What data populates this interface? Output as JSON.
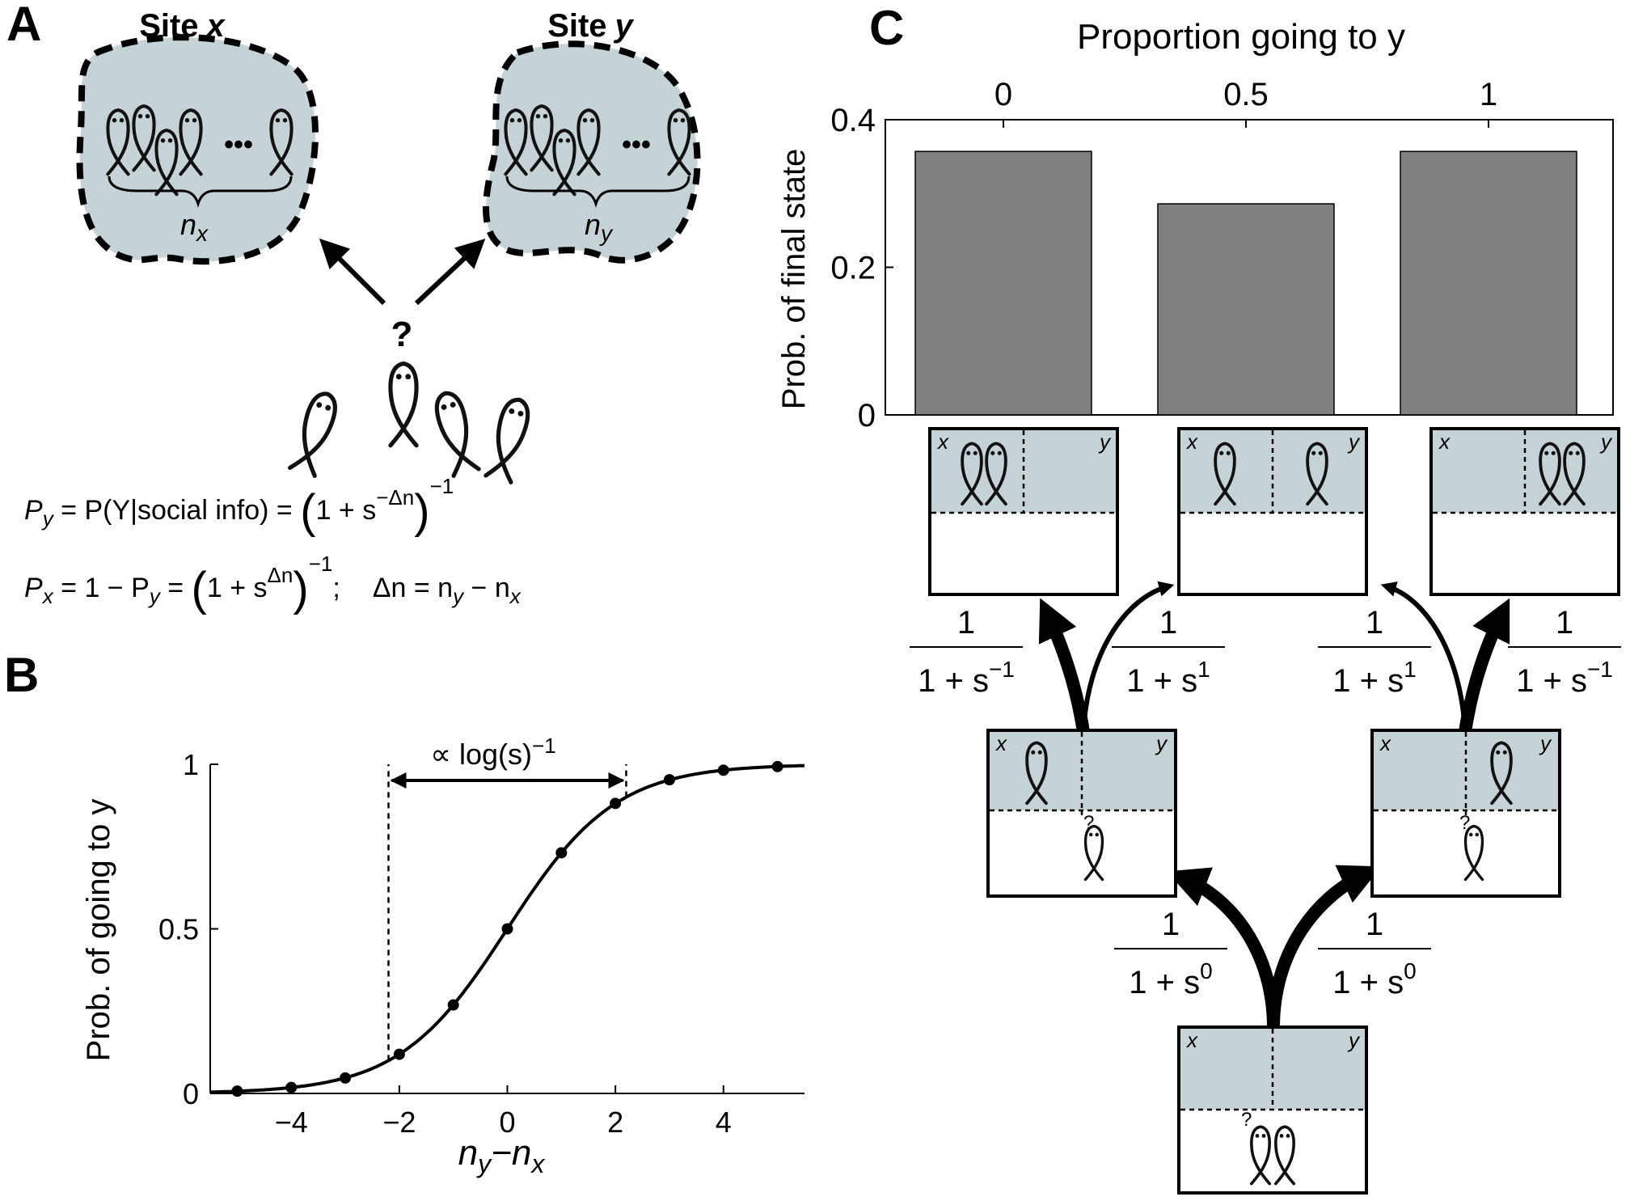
{
  "panels": {
    "a": {
      "letter": "A",
      "site_x": {
        "word": "Site",
        "var": "x",
        "count_label": "n",
        "count_sub": "x"
      },
      "site_y": {
        "word": "Site",
        "var": "y",
        "count_label": "n",
        "count_sub": "y"
      },
      "question_mark": "?",
      "ellipsis": "•••",
      "eq1": {
        "lhs_p": "P",
        "lhs_sub": "y",
        "mid": "= P(Y|social info) =",
        "paren_open": "(",
        "one_plus_s": "1 + s",
        "exp": "−Δn",
        "paren_close": ")",
        "outer_exp": "−1"
      },
      "eq2": {
        "lhs_p": "P",
        "lhs_sub": "x",
        "mid1": "= 1 − P",
        "mid1_sub": "y",
        "mid2": "=",
        "paren_open": "(",
        "one_plus_s": "1 + s",
        "exp": "Δn",
        "paren_close": ")",
        "outer_exp": "−1",
        "semi": ";",
        "delta_lhs": "Δn = n",
        "delta_sub1": "y",
        "delta_minus": "− n",
        "delta_sub2": "x"
      },
      "colors": {
        "site_fill": "#c5d3d6",
        "fish": "#111111"
      }
    },
    "b": {
      "letter": "B",
      "annotation": "∝ log(s)",
      "annotation_exp": "−1",
      "chart_data": {
        "type": "scatter",
        "title": "",
        "xlabel": {
          "n": "n",
          "sub1": "y",
          "dash": "−n",
          "sub2": "x"
        },
        "ylabel": "Prob. of going to y",
        "xlim": [
          -5.5,
          5.5
        ],
        "ylim": [
          0,
          1
        ],
        "xticks": [
          -4,
          -2,
          0,
          2,
          4
        ],
        "xtick_labels": [
          "−4",
          "−2",
          "0",
          "2",
          "4"
        ],
        "yticks": [
          0,
          0.5,
          1
        ],
        "ytick_labels": [
          "0",
          "0.5",
          "1"
        ],
        "points": {
          "x": [
            -5,
            -4,
            -3,
            -2,
            -1,
            0,
            1,
            2,
            3,
            4,
            5
          ],
          "y": [
            0.007,
            0.018,
            0.047,
            0.119,
            0.269,
            0.5,
            0.731,
            0.881,
            0.953,
            0.982,
            0.993
          ]
        },
        "curve": {
          "s": 2.718
        },
        "bracket": {
          "x1": -2.2,
          "x2": 2.2
        }
      }
    },
    "c": {
      "letter": "C",
      "chart_data": {
        "type": "bar",
        "title": "",
        "top_axis_label": "Proportion going to y",
        "ylabel": "Prob. of final state",
        "categories": [
          "0",
          "0.5",
          "1"
        ],
        "values": [
          0.357,
          0.286,
          0.357
        ],
        "ylim": [
          0,
          0.4
        ],
        "yticks": [
          0,
          0.2,
          0.4
        ],
        "ytick_labels": [
          "0",
          "0.2",
          "0.4"
        ],
        "bar_color": "#808080"
      },
      "state_label_x": "x",
      "state_label_y": "y",
      "question_mark": "?",
      "fraction_num": "1",
      "fraction_base": "1 + s",
      "transitions": [
        {
          "exp": "−1"
        },
        {
          "exp": "1"
        },
        {
          "exp": "1"
        },
        {
          "exp": "−1"
        },
        {
          "exp": "0"
        },
        {
          "exp": "0"
        }
      ]
    }
  }
}
